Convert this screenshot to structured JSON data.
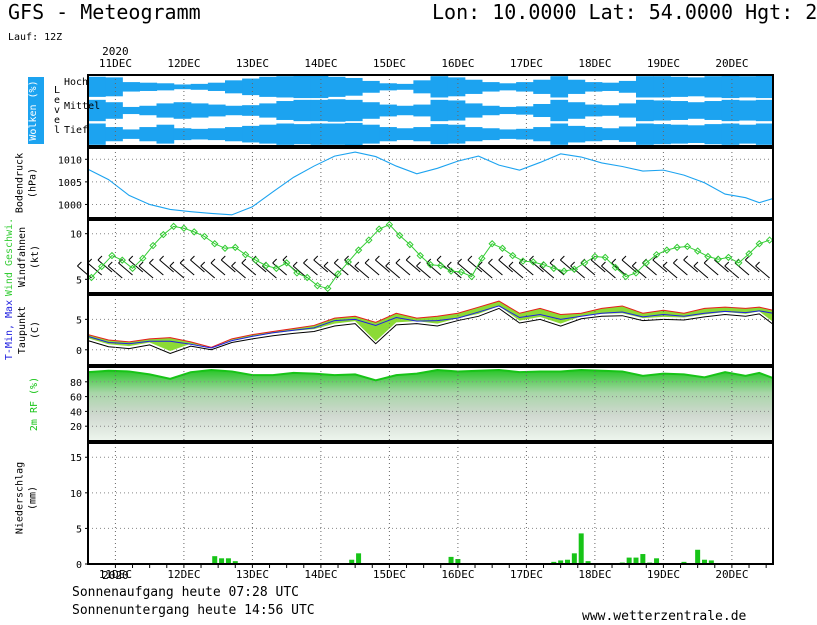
{
  "header": {
    "title": "GFS - Meteogramm",
    "coords": "Lon: 10.0000 Lat: 54.0000 Hgt: 2",
    "run": "Lauf: 12Z"
  },
  "footer": {
    "sunrise": "Sonnenaufgang heute 07:28 UTC",
    "sunset": "Sonnenuntergang heute 14:56 UTC",
    "site": "www.wetterzentrale.de"
  },
  "colors": {
    "cloud": "#1ca3f0",
    "pressure": "#1ca3f0",
    "wind": "#33cc33",
    "tmax": "#e81c1c",
    "tmin": "#2020e0",
    "temp_fill": "#7fd620",
    "rh": "#17c417",
    "precip": "#17c417"
  },
  "chart_data": {
    "type": "line",
    "x_axis": {
      "ticks": [
        "11DEC",
        "12DEC",
        "13DEC",
        "14DEC",
        "15DEC",
        "16DEC",
        "17DEC",
        "18DEC",
        "19DEC",
        "20DEC"
      ],
      "year": "2020",
      "range_days": [
        -0.4,
        9.6
      ]
    },
    "panels": [
      {
        "id": "clouds",
        "ylabel": [
          "Wolken (%)",
          "L e v e l"
        ],
        "levels": [
          "Hoch",
          "Mittel",
          "Tief"
        ],
        "type": "heatmap",
        "rows": [
          "Hoch",
          "Mittel",
          "Tief"
        ],
        "cover": [
          [
            0.85,
            0.8,
            0.4,
            0.35,
            0.3,
            0.2,
            0.25,
            0.35,
            0.55,
            0.7,
            0.85,
            0.9,
            0.95,
            0.95,
            0.85,
            0.75,
            0.5,
            0.3,
            0.25,
            0.55,
            0.9,
            0.8,
            0.6,
            0.4,
            0.3,
            0.4,
            0.6,
            0.9,
            0.6,
            0.4,
            0.35,
            0.5,
            0.9,
            0.9,
            0.85,
            0.8,
            0.9,
            0.95,
            0.9,
            0.95
          ],
          [
            0.9,
            0.7,
            0.3,
            0.4,
            0.6,
            0.7,
            0.6,
            0.5,
            0.4,
            0.45,
            0.6,
            0.8,
            0.9,
            0.9,
            0.95,
            0.9,
            0.7,
            0.5,
            0.4,
            0.5,
            0.9,
            0.85,
            0.6,
            0.4,
            0.3,
            0.35,
            0.55,
            0.9,
            0.7,
            0.5,
            0.45,
            0.6,
            0.9,
            0.85,
            0.8,
            0.7,
            0.8,
            0.9,
            0.85,
            0.9
          ],
          [
            0.9,
            0.6,
            0.4,
            0.6,
            0.8,
            0.5,
            0.45,
            0.5,
            0.6,
            0.7,
            0.8,
            0.9,
            0.85,
            0.9,
            0.9,
            0.95,
            0.8,
            0.6,
            0.5,
            0.6,
            0.85,
            0.8,
            0.6,
            0.5,
            0.4,
            0.45,
            0.6,
            0.9,
            0.7,
            0.6,
            0.5,
            0.65,
            0.9,
            0.85,
            0.8,
            0.75,
            0.85,
            0.9,
            0.8,
            0.9
          ]
        ]
      },
      {
        "id": "pressure",
        "ylabel": [
          "Bodendruck",
          "(hPa)"
        ],
        "yticks": [
          1000,
          1005,
          1010
        ],
        "ylim": [
          997,
          1012.5
        ],
        "x": [
          -0.4,
          -0.1,
          0.2,
          0.5,
          0.8,
          1.1,
          1.4,
          1.7,
          2.0,
          2.3,
          2.6,
          2.9,
          3.2,
          3.5,
          3.8,
          4.1,
          4.4,
          4.7,
          5.0,
          5.3,
          5.6,
          5.9,
          6.2,
          6.5,
          6.8,
          7.1,
          7.4,
          7.7,
          8.0,
          8.3,
          8.6,
          8.9,
          9.2,
          9.4,
          9.6
        ],
        "values": [
          1007.8,
          1005.5,
          1002.0,
          1000.0,
          998.9,
          998.4,
          998.0,
          997.7,
          999.5,
          1002.8,
          1006.0,
          1008.5,
          1010.7,
          1011.6,
          1010.6,
          1008.5,
          1006.8,
          1008.0,
          1009.6,
          1010.7,
          1008.7,
          1007.6,
          1009.3,
          1011.2,
          1010.5,
          1009.2,
          1008.4,
          1007.4,
          1007.6,
          1006.5,
          1004.8,
          1002.3,
          1001.5,
          1000.4,
          1001.3
        ]
      },
      {
        "id": "wind",
        "ylabel": [
          "Wind Geschwi.",
          "Windfahnen",
          "(kt)"
        ],
        "yticks": [
          5,
          10
        ],
        "ylim": [
          3.5,
          11.5
        ],
        "x": [
          -0.35,
          -0.2,
          -0.05,
          0.1,
          0.25,
          0.4,
          0.55,
          0.7,
          0.85,
          1.0,
          1.15,
          1.3,
          1.45,
          1.6,
          1.75,
          1.9,
          2.05,
          2.2,
          2.35,
          2.5,
          2.65,
          2.8,
          2.95,
          3.1,
          3.25,
          3.4,
          3.55,
          3.7,
          3.85,
          4.0,
          4.15,
          4.3,
          4.45,
          4.6,
          4.75,
          4.9,
          5.05,
          5.2,
          5.35,
          5.5,
          5.65,
          5.8,
          5.95,
          6.1,
          6.25,
          6.4,
          6.55,
          6.7,
          6.85,
          7.0,
          7.15,
          7.3,
          7.45,
          7.6,
          7.75,
          7.9,
          8.05,
          8.2,
          8.35,
          8.5,
          8.65,
          8.8,
          8.95,
          9.1,
          9.25,
          9.4,
          9.55
        ],
        "values": [
          5.2,
          6.4,
          7.6,
          7.1,
          6.2,
          7.3,
          8.7,
          9.9,
          10.8,
          10.6,
          10.2,
          9.7,
          8.9,
          8.4,
          8.5,
          7.7,
          7.1,
          6.5,
          6.2,
          6.8,
          5.7,
          5.2,
          4.3,
          4.0,
          5.6,
          6.9,
          8.2,
          9.3,
          10.5,
          11.0,
          9.8,
          8.8,
          7.6,
          6.6,
          6.5,
          5.9,
          5.8,
          5.3,
          7.3,
          8.9,
          8.4,
          7.6,
          7.0,
          6.9,
          6.6,
          6.2,
          5.9,
          6.1,
          6.8,
          7.5,
          7.4,
          6.3,
          5.3,
          5.7,
          6.8,
          7.7,
          8.2,
          8.5,
          8.6,
          8.1,
          7.5,
          7.2,
          7.4,
          6.8,
          7.8,
          8.9,
          9.3
        ]
      },
      {
        "id": "temperature",
        "ylabel": [
          "T-Min, Max",
          "Taupunkt",
          "(C)"
        ],
        "yticks": [
          0,
          5
        ],
        "ylim": [
          -2.5,
          9
        ],
        "x": [
          -0.4,
          -0.1,
          0.2,
          0.5,
          0.8,
          1.1,
          1.4,
          1.7,
          2.0,
          2.3,
          2.6,
          2.9,
          3.2,
          3.5,
          3.8,
          4.1,
          4.4,
          4.7,
          5.0,
          5.3,
          5.6,
          5.9,
          6.2,
          6.5,
          6.8,
          7.1,
          7.4,
          7.7,
          8.0,
          8.3,
          8.6,
          8.9,
          9.2,
          9.4,
          9.6
        ],
        "t_max": [
          2.5,
          1.6,
          1.3,
          1.8,
          2.0,
          1.3,
          0.4,
          1.8,
          2.5,
          3.0,
          3.5,
          4.0,
          5.2,
          5.5,
          4.5,
          6.0,
          5.2,
          5.5,
          6.0,
          7.0,
          8.0,
          6.0,
          6.8,
          5.8,
          6.0,
          6.8,
          7.2,
          6.0,
          6.5,
          6.0,
          6.8,
          7.0,
          6.8,
          7.0,
          6.5
        ],
        "t_min": [
          2.2,
          1.2,
          1.0,
          1.4,
          1.4,
          0.9,
          0.3,
          1.5,
          2.2,
          2.8,
          3.2,
          3.6,
          4.8,
          5.0,
          4.0,
          5.3,
          4.7,
          4.8,
          5.2,
          6.2,
          7.2,
          5.3,
          5.8,
          5.0,
          5.5,
          6.0,
          6.2,
          5.4,
          5.8,
          5.5,
          6.0,
          6.3,
          6.1,
          6.4,
          6.0
        ],
        "dewpoint": [
          1.5,
          0.5,
          0.2,
          0.8,
          -0.6,
          0.6,
          0.0,
          1.2,
          1.8,
          2.3,
          2.7,
          3.0,
          3.9,
          4.3,
          1.0,
          4.1,
          4.3,
          3.9,
          4.8,
          5.5,
          6.8,
          4.4,
          5.0,
          3.9,
          5.1,
          5.5,
          5.6,
          4.8,
          5.0,
          4.9,
          5.4,
          5.8,
          5.5,
          5.9,
          4.2
        ]
      },
      {
        "id": "rh",
        "ylabel": [
          "2m RF (%)"
        ],
        "yticks": [
          20,
          40,
          60,
          80
        ],
        "ylim": [
          0,
          100
        ],
        "x": [
          -0.4,
          -0.1,
          0.2,
          0.5,
          0.8,
          1.1,
          1.4,
          1.7,
          2.0,
          2.3,
          2.6,
          2.9,
          3.2,
          3.5,
          3.8,
          4.1,
          4.4,
          4.7,
          5.0,
          5.3,
          5.6,
          5.9,
          6.2,
          6.5,
          6.8,
          7.1,
          7.4,
          7.7,
          8.0,
          8.3,
          8.6,
          8.9,
          9.2,
          9.4,
          9.6
        ],
        "values": [
          93,
          95,
          94,
          90,
          84,
          93,
          96,
          94,
          89,
          89,
          92,
          91,
          89,
          90,
          82,
          89,
          91,
          96,
          94,
          95,
          96,
          93,
          94,
          94,
          96,
          95,
          94,
          88,
          91,
          90,
          86,
          93,
          88,
          92,
          85
        ]
      },
      {
        "id": "precip",
        "type": "bar",
        "ylabel": [
          "Niederschlag",
          "(mm)"
        ],
        "yticks": [
          0,
          5,
          10,
          15
        ],
        "ylim": [
          0,
          17
        ],
        "x": [
          1.45,
          1.55,
          1.65,
          1.75,
          3.45,
          3.55,
          4.9,
          5.0,
          6.4,
          6.5,
          6.6,
          6.7,
          6.8,
          6.9,
          7.4,
          7.5,
          7.6,
          7.7,
          7.8,
          7.9,
          8.3,
          8.4,
          8.5,
          8.6,
          8.7
        ],
        "values": [
          1.1,
          0.8,
          0.8,
          0.4,
          0.6,
          1.5,
          1.0,
          0.7,
          0.3,
          0.5,
          0.6,
          1.5,
          4.3,
          0.4,
          0.2,
          0.9,
          0.9,
          1.4,
          0.2,
          0.8,
          0.3,
          0.1,
          2.0,
          0.6,
          0.5
        ]
      }
    ]
  }
}
